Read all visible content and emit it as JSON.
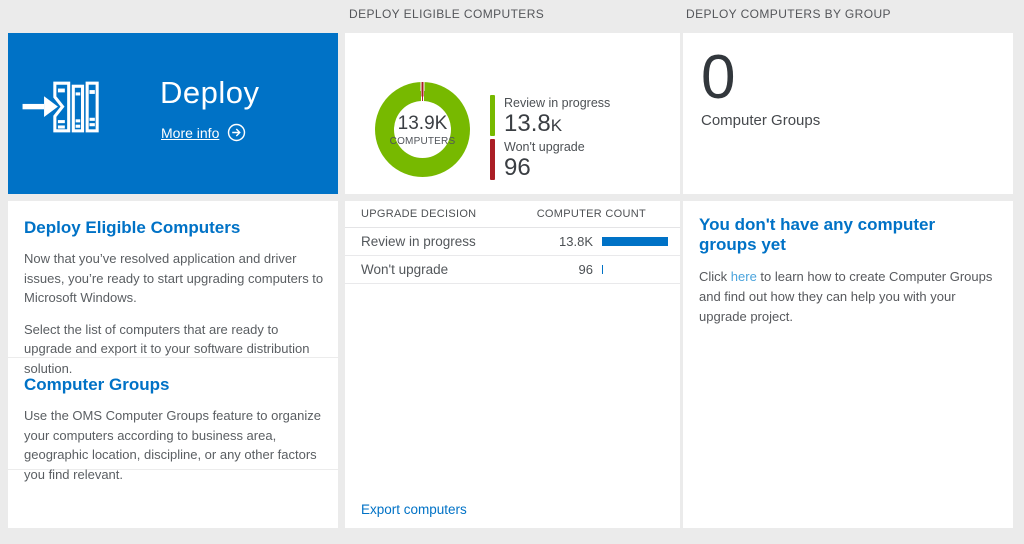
{
  "colors": {
    "accent": "#0072c6",
    "link_light": "#4aa3dc",
    "green": "#77b900",
    "red": "#aa1e25",
    "background": "#ebebeb"
  },
  "headers": {
    "middle": "DEPLOY ELIGIBLE COMPUTERS",
    "right": "DEPLOY COMPUTERS BY GROUP"
  },
  "tile": {
    "title": "Deploy",
    "more_info": "More info"
  },
  "left": {
    "sections": [
      {
        "heading": "Deploy Eligible Computers",
        "p1": "Now that you’ve resolved application and driver issues, you’re ready to start upgrading computers to Microsoft Windows.",
        "p2": "Select the list of computers that are ready to upgrade and export it to your software distribution solution."
      },
      {
        "heading": "Computer Groups",
        "p1": "Use the OMS Computer Groups feature to organize your computers according to business area, geographic location, discipline, or any other factors you find relevant."
      }
    ]
  },
  "middle": {
    "legend": [
      {
        "label": "Review in progress",
        "value": "13.8",
        "suffix": "K"
      },
      {
        "label": "Won't upgrade",
        "value": "96",
        "suffix": ""
      }
    ],
    "table": {
      "col1": "UPGRADE DECISION",
      "col2": "COMPUTER COUNT",
      "rows": [
        {
          "label": "Review in progress",
          "value": "13.8K",
          "bar_pct": 100
        },
        {
          "label": "Won't upgrade",
          "value": "96",
          "bar_pct": 2
        }
      ]
    },
    "export_link": "Export computers"
  },
  "right": {
    "count": "0",
    "count_label": "Computer Groups",
    "empty_heading": "You don't have any computer groups yet",
    "empty_text_before": "Click ",
    "empty_link": "here",
    "empty_text_after": " to learn how to create Computer Groups and find out how they can help you with your upgrade project."
  },
  "chart_data": {
    "type": "pie",
    "subtype": "donut",
    "title": "DEPLOY ELIGIBLE COMPUTERS",
    "categories": [
      "Review in progress",
      "Won't upgrade"
    ],
    "values": [
      13800,
      96
    ],
    "value_labels": [
      "13.8K",
      "96"
    ],
    "colors": [
      "#77b900",
      "#aa1e25"
    ],
    "center_value": "13.9K",
    "center_label": "COMPUTERS",
    "total_label": "13.9K COMPUTERS",
    "legend_position": "right"
  }
}
